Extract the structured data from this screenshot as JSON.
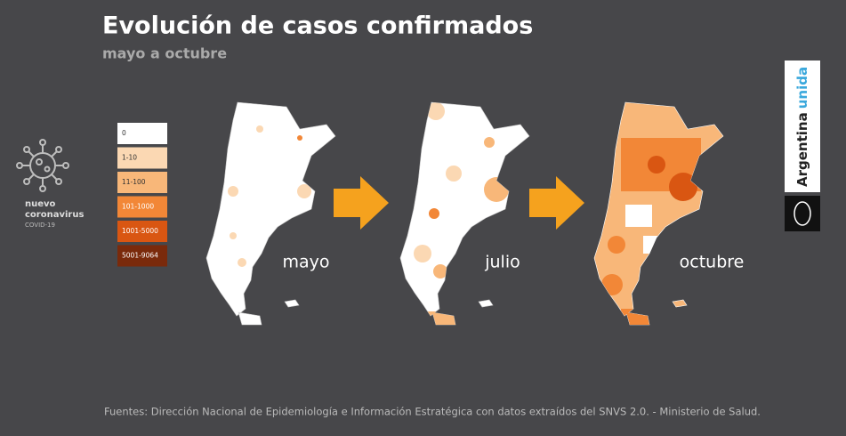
{
  "header": {
    "title": "Evolución de casos confirmados",
    "subtitle": "mayo a octubre"
  },
  "logo": {
    "line1": "nuevo",
    "line2": "coronavirus",
    "line3": "COVID-19"
  },
  "legend": [
    {
      "label": "0",
      "color": "#ffffff"
    },
    {
      "label": "1-10",
      "color": "#fbd8b3"
    },
    {
      "label": "11-100",
      "color": "#f8b779"
    },
    {
      "label": "101-1000",
      "color": "#f28737"
    },
    {
      "label": "1001-5000",
      "color": "#d95612"
    },
    {
      "label": "5001-9064",
      "color": "#7a2a0b"
    }
  ],
  "maps": [
    {
      "label": "mayo"
    },
    {
      "label": "julio"
    },
    {
      "label": "octubre"
    }
  ],
  "brand": {
    "word1": "Argentina",
    "word2": "unida"
  },
  "footer": "Fuentes: Dirección Nacional de Epidemiología e Información Estratégica con datos extraídos del SNVS 2.0. - Ministerio de Salud."
}
